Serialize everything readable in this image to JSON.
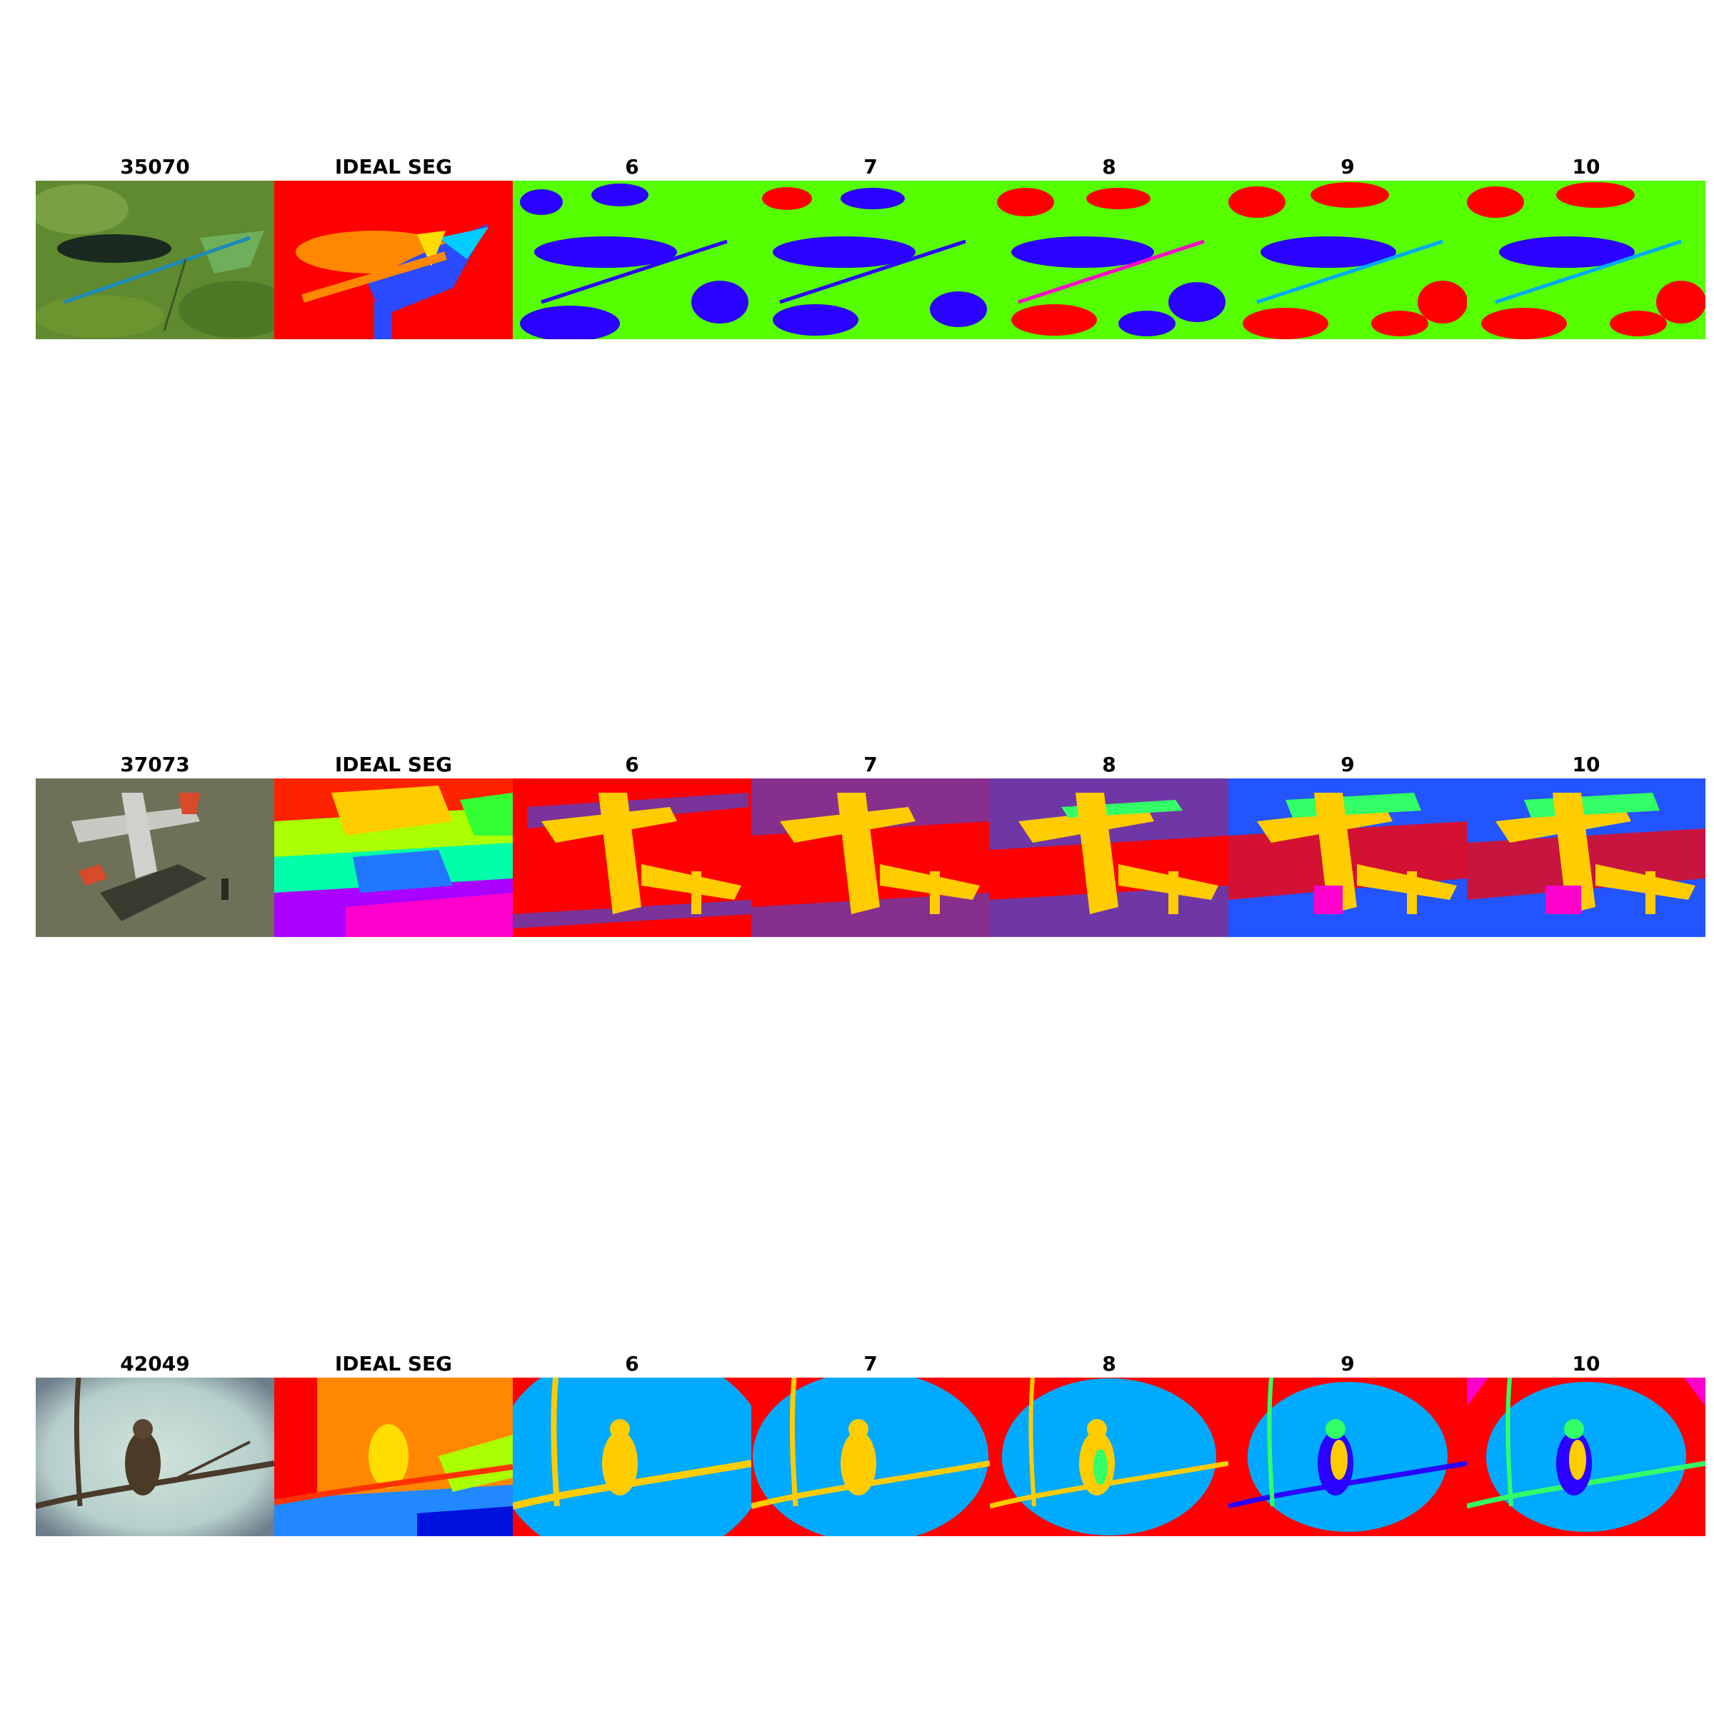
{
  "rows": [
    {
      "image_id": "35070",
      "subject": "damselfly",
      "titles": [
        "35070",
        "IDEAL SEG",
        "6",
        "7",
        "8",
        "9",
        "10"
      ]
    },
    {
      "image_id": "37073",
      "subject": "airplane",
      "titles": [
        "37073",
        "IDEAL SEG",
        "6",
        "7",
        "8",
        "9",
        "10"
      ]
    },
    {
      "image_id": "42049",
      "subject": "bird",
      "titles": [
        "42049",
        "IDEAL SEG",
        "6",
        "7",
        "8",
        "9",
        "10"
      ]
    }
  ],
  "colors": {
    "red": "#ff0000",
    "green": "#55ff00",
    "blue": "#2a00ff",
    "yellow": "#ffcc00",
    "sky": "#00aaff",
    "orange": "#ff8800",
    "magenta": "#ff00cc"
  }
}
